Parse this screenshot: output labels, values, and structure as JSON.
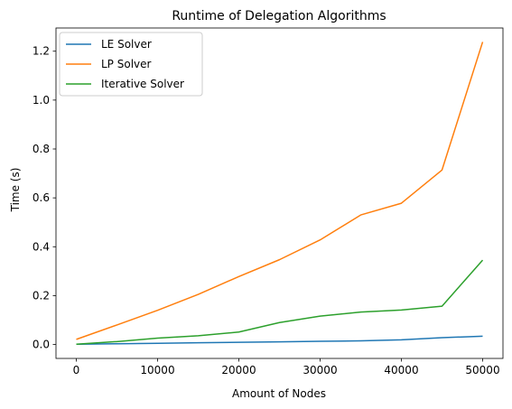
{
  "chart_data": {
    "type": "line",
    "title": "Runtime of Delegation Algorithms",
    "xlabel": "Amount of Nodes",
    "ylabel": "Time (s)",
    "xlim": [
      -2500,
      52500
    ],
    "ylim": [
      -0.057,
      1.295
    ],
    "xticks": [
      0,
      10000,
      20000,
      30000,
      40000,
      50000
    ],
    "yticks": [
      0.0,
      0.2,
      0.4,
      0.6,
      0.8,
      1.0,
      1.2
    ],
    "xtick_labels": [
      "0",
      "10000",
      "20000",
      "30000",
      "40000",
      "50000"
    ],
    "ytick_labels": [
      "0.0",
      "0.2",
      "0.4",
      "0.6",
      "0.8",
      "1.0",
      "1.2"
    ],
    "grid": false,
    "legend_position": "top-left",
    "x": [
      0,
      5000,
      10000,
      15000,
      20000,
      25000,
      30000,
      35000,
      40000,
      45000,
      50000
    ],
    "series": [
      {
        "name": "LE Solver",
        "color": "#1f77b4",
        "values": [
          0.001,
          0.003,
          0.005,
          0.007,
          0.009,
          0.011,
          0.013,
          0.015,
          0.019,
          0.028,
          0.034
        ]
      },
      {
        "name": "LP Solver",
        "color": "#ff7f0e",
        "values": [
          0.021,
          0.08,
          0.14,
          0.205,
          0.278,
          0.347,
          0.428,
          0.53,
          0.578,
          0.714,
          1.238
        ]
      },
      {
        "name": "Iterative Solver",
        "color": "#2ca02c",
        "values": [
          0.001,
          0.012,
          0.026,
          0.036,
          0.051,
          0.09,
          0.116,
          0.133,
          0.141,
          0.157,
          0.345
        ]
      }
    ]
  }
}
